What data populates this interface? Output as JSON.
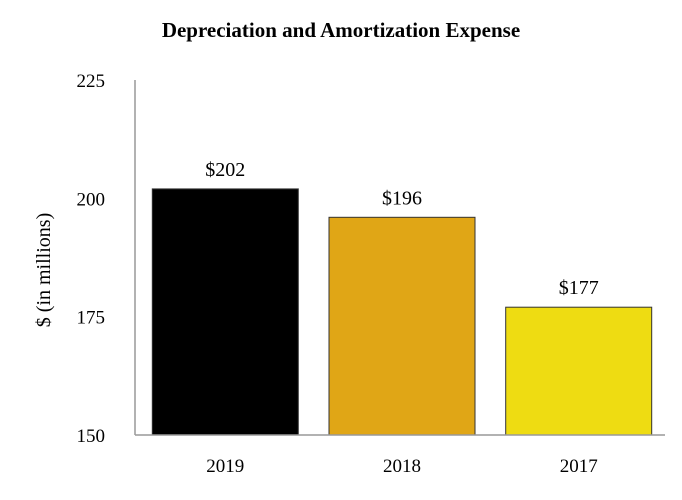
{
  "chart_data": {
    "type": "bar",
    "title": "Depreciation and Amortization Expense",
    "xlabel": "",
    "ylabel": "$ (in millions)",
    "categories": [
      "2019",
      "2018",
      "2017"
    ],
    "values": [
      202,
      196,
      177
    ],
    "data_labels": [
      "$202",
      "$196",
      "$177"
    ],
    "colors": [
      "#000000",
      "#E0A616",
      "#EEDC12"
    ],
    "ylim": [
      150,
      225
    ],
    "yticks": [
      150,
      175,
      200,
      225
    ],
    "ytick_labels": [
      "150",
      "175",
      "200",
      "225"
    ],
    "grid": false,
    "legend": "none"
  }
}
